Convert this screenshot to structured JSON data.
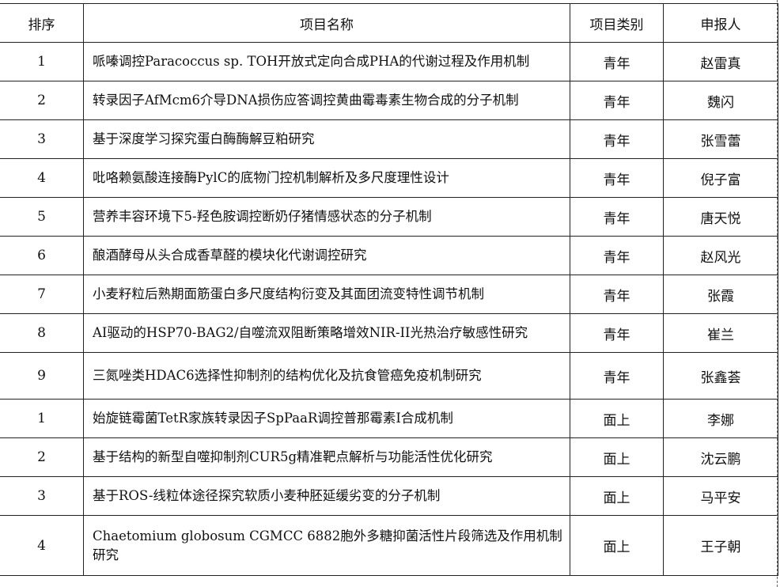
{
  "headers": {
    "rank": "排序",
    "name": "项目名称",
    "category": "项目类别",
    "applicant": "申报人"
  },
  "rows": [
    {
      "rank": "1",
      "name": "哌嗪调控Paracoccus sp. TOH开放式定向合成PHA的代谢过程及作用机制",
      "category": "青年",
      "applicant": "赵雷真"
    },
    {
      "rank": "2",
      "name": "转录因子AfMcm6介导DNA损伤应答调控黄曲霉毒素生物合成的分子机制",
      "category": "青年",
      "applicant": "魏闪"
    },
    {
      "rank": "3",
      "name": "基于深度学习探究蛋白酶酶解豆粕研究",
      "category": "青年",
      "applicant": "张雪蕾"
    },
    {
      "rank": "4",
      "name": "吡咯赖氨酸连接酶PylC的底物门控机制解析及多尺度理性设计",
      "category": "青年",
      "applicant": "倪子富"
    },
    {
      "rank": "5",
      "name": "营养丰容环境下5-羟色胺调控断奶仔猪情感状态的分子机制",
      "category": "青年",
      "applicant": "唐天悦"
    },
    {
      "rank": "6",
      "name": "酿酒酵母从头合成香草醛的模块化代谢调控研究",
      "category": "青年",
      "applicant": "赵风光"
    },
    {
      "rank": "7",
      "name": "小麦籽粒后熟期面筋蛋白多尺度结构衍变及其面团流变特性调节机制",
      "category": "青年",
      "applicant": "张霞"
    },
    {
      "rank": "8",
      "name": "AI驱动的HSP70-BAG2/自噬流双阻断策略增效NIR-II光热治疗敏感性研究",
      "category": "青年",
      "applicant": "崔兰"
    },
    {
      "rank": "9",
      "name": "三氮唑类HDAC6选择性抑制剂的结构优化及抗食管癌免疫机制研究",
      "category": "青年",
      "applicant": "张鑫荟"
    },
    {
      "rank": "1",
      "name": "始旋链霉菌TetR家族转录因子SpPaaR调控普那霉素I合成机制",
      "category": "面上",
      "applicant": "李娜"
    },
    {
      "rank": "2",
      "name": "基于结构的新型自噬抑制剂CUR5g精准靶点解析与功能活性优化研究",
      "category": "面上",
      "applicant": "沈云鹏"
    },
    {
      "rank": "3",
      "name": "基于ROS-线粒体途径探究软质小麦种胚延缓劣变的分子机制",
      "category": "面上",
      "applicant": "马平安"
    },
    {
      "rank": "4",
      "name": "Chaetomium globosum CGMCC 6882胞外多糖抑菌活性片段筛选及作用机制研究",
      "category": "面上",
      "applicant": "王子朝"
    }
  ]
}
